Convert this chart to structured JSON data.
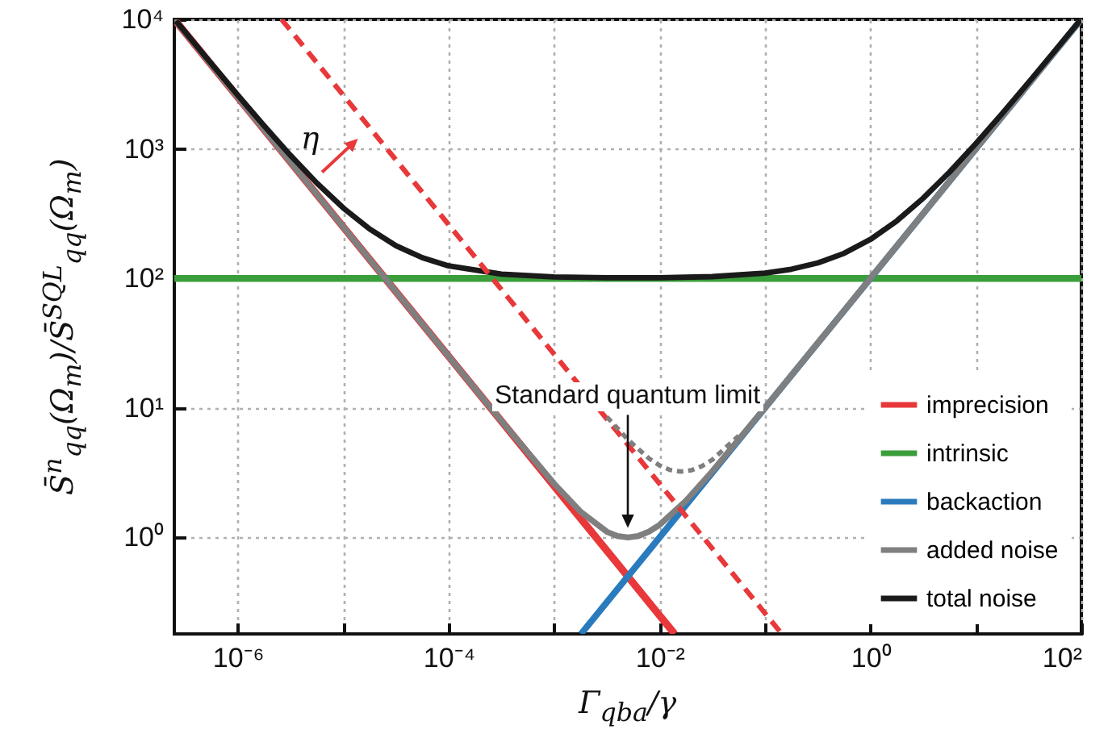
{
  "chart_data": {
    "type": "line",
    "xlabel": "Γ$_{qba}$/γ",
    "ylabel": "S̄$^{n}$$_{qq}$(Ω$_{m}$)/S̄$^{SQL}$$_{qq}$(Ω$_{m}$)",
    "log": "xy",
    "grid": true,
    "legend": "bottom right",
    "line_style": "solid",
    "xlim": [
      2.5e-07,
      100
    ],
    "ylim": [
      0.18,
      10000
    ],
    "xticks": [
      {
        "value": 1e-06,
        "label": "10⁻⁶"
      },
      {
        "value": 1e-05,
        "label": null
      },
      {
        "value": 0.0001,
        "label": "10⁻⁴"
      },
      {
        "value": 0.001,
        "label": null
      },
      {
        "value": 0.01,
        "label": "10⁻²"
      },
      {
        "value": 0.1,
        "label": null
      },
      {
        "value": 1,
        "label": "10⁰"
      },
      {
        "value": 10,
        "label": null
      },
      {
        "value": 100,
        "label": "10²"
      }
    ],
    "yticks": [
      {
        "value": 1,
        "label": "10⁰"
      },
      {
        "value": 10,
        "label": "10¹"
      },
      {
        "value": 100,
        "label": "10²"
      },
      {
        "value": 1000,
        "label": "10³"
      },
      {
        "value": 10000,
        "label": "10⁴"
      }
    ],
    "annotations": [
      "η",
      "Standard quantum limit"
    ],
    "series": [
      {
        "name": "imprecision",
        "color": "#e8383a",
        "x": [
          2.512e-07,
          1e-06,
          1e-05,
          0.0001,
          0.001,
          0.01,
          0.0139
        ],
        "values": [
          9953,
          2500,
          250,
          25,
          2.5,
          0.25,
          0.18
        ]
      },
      {
        "name": "intrinsic",
        "color": "#3a9e3a",
        "x": [
          2.5e-07,
          100
        ],
        "values": [
          100,
          100
        ]
      },
      {
        "name": "backaction",
        "color": "#2a7bbd",
        "x": [
          0.0018,
          0.01,
          0.1,
          1,
          10,
          100
        ],
        "values": [
          0.18,
          1,
          10,
          100,
          1000,
          10000
        ]
      },
      {
        "name": "added noise",
        "color": "#7f7f7f",
        "x": [
          2.512e-07,
          1e-06,
          1e-05,
          0.0001,
          0.0003162,
          0.001,
          0.001778,
          0.003162,
          0.003981,
          0.005012,
          0.00631,
          0.007943,
          0.01,
          0.01778,
          0.03162,
          0.1,
          1,
          10,
          100
        ],
        "values": [
          9953,
          2500,
          250,
          25.01,
          7.94,
          2.6,
          1.584,
          1.107,
          1.026,
          1.0,
          1.027,
          1.109,
          1.25,
          1.919,
          3.241,
          10.03,
          100,
          1000,
          10000
        ]
      },
      {
        "name": "total noise",
        "color": "#1a1a1a",
        "x": [
          2.6e-07,
          5e-07,
          1e-06,
          1.778e-06,
          3.162e-06,
          5.623e-06,
          1e-05,
          1.778e-05,
          3.162e-05,
          5.623e-05,
          0.0001,
          0.0003162,
          0.001,
          0.003162,
          0.01,
          0.03162,
          0.1,
          0.1778,
          0.3162,
          0.5623,
          1,
          1.778,
          3.162,
          5.623,
          10,
          17.78,
          31.62,
          56.23,
          99
        ],
        "values": [
          9715,
          5100,
          2600,
          1506,
          890.6,
          544.6,
          350,
          240.6,
          179.1,
          144.5,
          125,
          107.9,
          102.6,
          101.1,
          101.25,
          103.2,
          110,
          117.8,
          131.6,
          156.2,
          200,
          277.8,
          416.2,
          662.3,
          1100,
          1878,
          3262,
          5723,
          10000
        ]
      },
      {
        "color": "#e8383a",
        "line_style": "dashed",
        "x": [
          2.6e-06,
          1e-05,
          0.0001,
          0.001,
          0.01,
          0.1,
          0.1444
        ],
        "values": [
          10000,
          2600,
          260,
          26,
          2.6,
          0.26,
          0.18
        ]
      },
      {
        "color": "#7f7f7f",
        "line_style": "dotted",
        "x": [
          0.003162,
          0.005012,
          0.007943,
          0.01,
          0.01259,
          0.01585,
          0.01995,
          0.02512,
          0.03162,
          0.05623
        ],
        "values": [
          8.54,
          5.69,
          4.07,
          3.6,
          3.32,
          3.23,
          3.3,
          3.55,
          3.98,
          6.09
        ]
      }
    ]
  }
}
